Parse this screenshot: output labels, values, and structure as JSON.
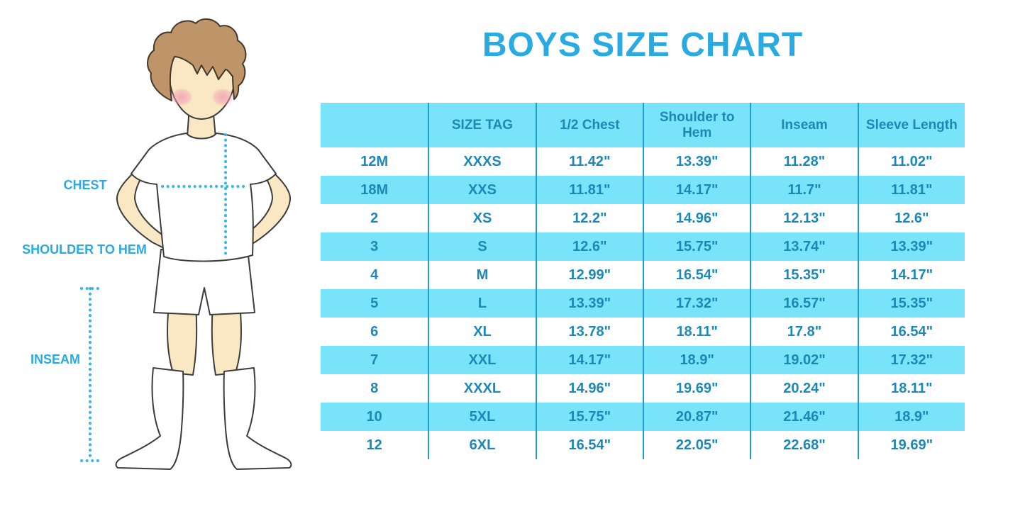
{
  "title": "BOYS SIZE CHART",
  "figure": {
    "labels": {
      "chest": "CHEST",
      "shoulder_to_hem": "SHOULDER TO HEM",
      "inseam": "INSEAM"
    }
  },
  "table": {
    "headers": [
      "",
      "SIZE TAG",
      "1/2 Chest",
      "Shoulder to Hem",
      "Inseam",
      "Sleeve Length"
    ],
    "rows": [
      [
        "12M",
        "XXXS",
        "11.42\"",
        "13.39\"",
        "11.28\"",
        "11.02\""
      ],
      [
        "18M",
        "XXS",
        "11.81\"",
        "14.17\"",
        "11.7\"",
        "11.81\""
      ],
      [
        "2",
        "XS",
        "12.2\"",
        "14.96\"",
        "12.13\"",
        "12.6\""
      ],
      [
        "3",
        "S",
        "12.6\"",
        "15.75\"",
        "13.74\"",
        "13.39\""
      ],
      [
        "4",
        "M",
        "12.99\"",
        "16.54\"",
        "15.35\"",
        "14.17\""
      ],
      [
        "5",
        "L",
        "13.39\"",
        "17.32\"",
        "16.57\"",
        "15.35\""
      ],
      [
        "6",
        "XL",
        "13.78\"",
        "18.11\"",
        "17.8\"",
        "16.54\""
      ],
      [
        "7",
        "XXL",
        "14.17\"",
        "18.9\"",
        "19.02\"",
        "17.32\""
      ],
      [
        "8",
        "XXXL",
        "14.96\"",
        "19.69\"",
        "20.24\"",
        "18.11\""
      ],
      [
        "10",
        "5XL",
        "15.75\"",
        "20.87\"",
        "21.46\"",
        "18.9\""
      ],
      [
        "12",
        "6XL",
        "16.54\"",
        "22.05\"",
        "22.68\"",
        "19.69\""
      ]
    ]
  },
  "colors": {
    "accent": "#29ABE2",
    "stripe": "#79E3FA",
    "table_text": "#1C88B6",
    "divider": "#1E9ECF",
    "dots": "#35B6E8",
    "skin": "#FAE7C4",
    "hair": "#BE9569",
    "hair_outline": "#44382A",
    "blush": "#F0A0B4",
    "outline": "#3C3C3C"
  }
}
